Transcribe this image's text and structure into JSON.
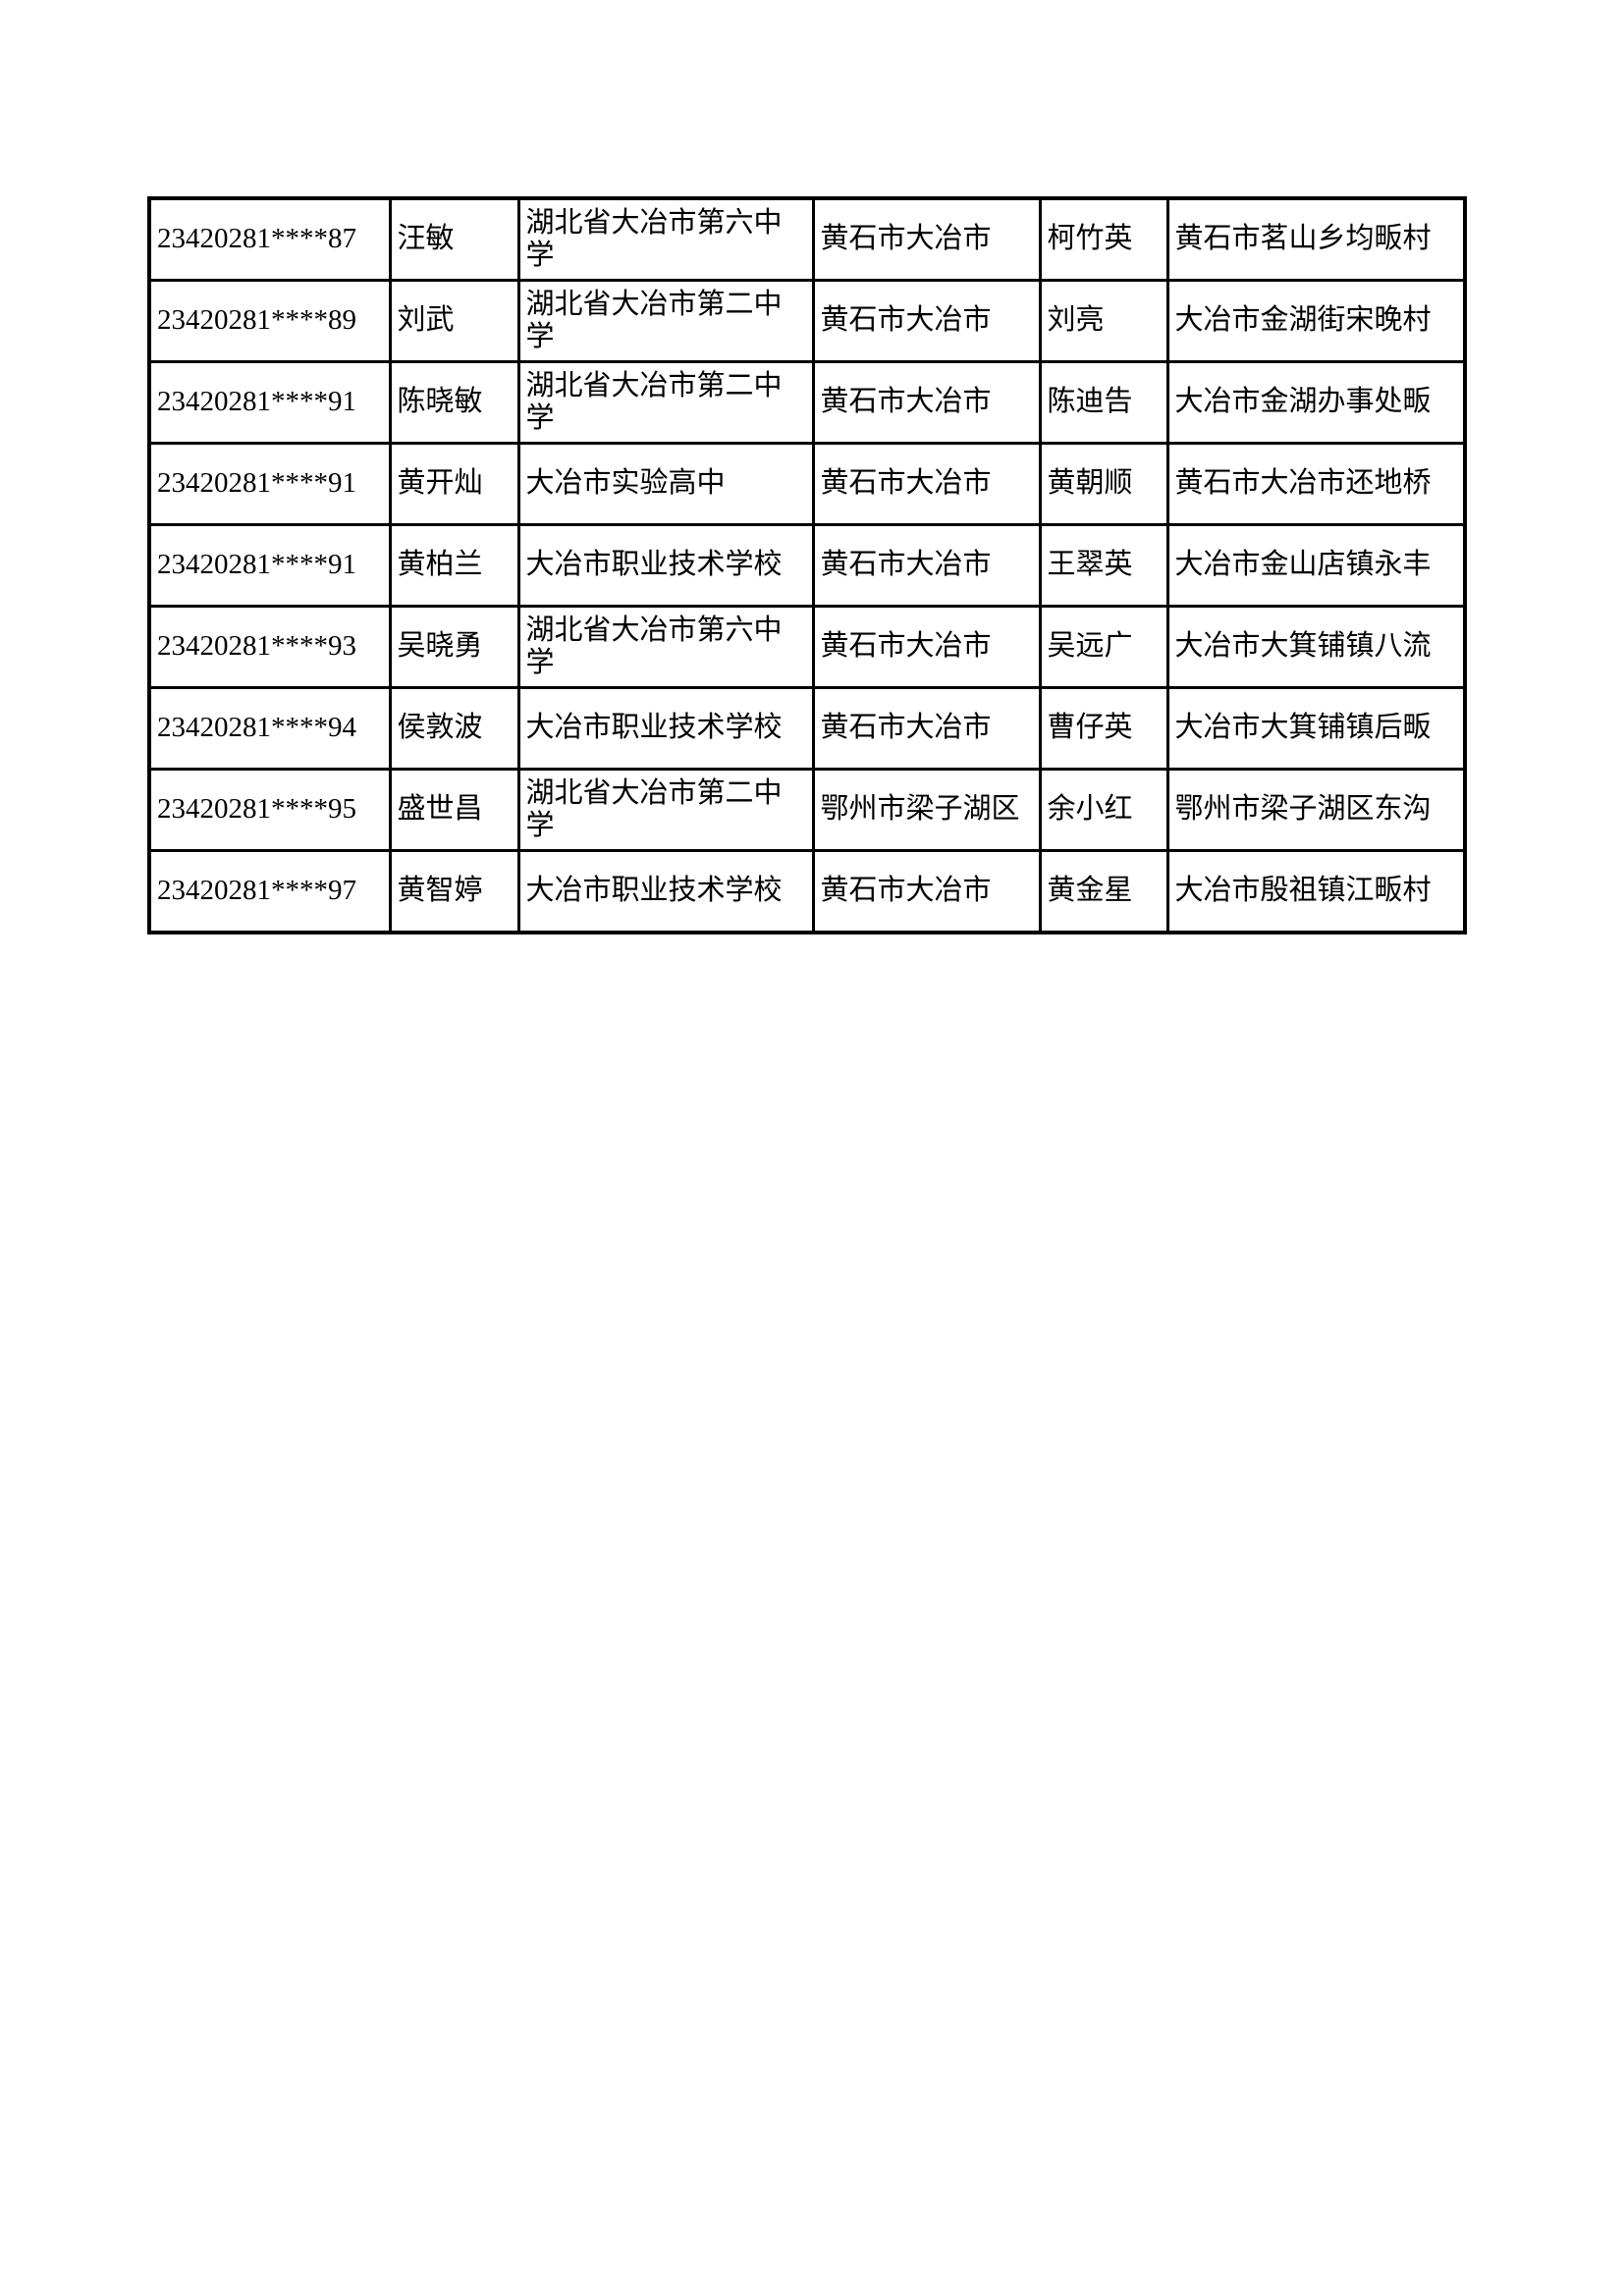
{
  "page": {
    "background_color": "#ffffff",
    "text_color": "#000000",
    "border_color": "#000000"
  },
  "table": {
    "columns": [
      "student_id",
      "student_name",
      "school",
      "city_county",
      "guardian_name",
      "address"
    ],
    "rows": [
      [
        "23420281****87",
        "汪敏",
        "湖北省大冶市第六中学",
        "黄石市大冶市",
        "柯竹英",
        "黄石市茗山乡均畈村"
      ],
      [
        "23420281****89",
        "刘武",
        "湖北省大冶市第二中学",
        "黄石市大冶市",
        "刘亮",
        "大冶市金湖街宋晚村"
      ],
      [
        "23420281****91",
        "陈晓敏",
        "湖北省大冶市第二中学",
        "黄石市大冶市",
        "陈迪告",
        "大冶市金湖办事处畈"
      ],
      [
        "23420281****91",
        "黄开灿",
        "大冶市实验高中",
        "黄石市大冶市",
        "黄朝顺",
        "黄石市大冶市还地桥"
      ],
      [
        "23420281****91",
        "黄柏兰",
        "大冶市职业技术学校",
        "黄石市大冶市",
        "王翠英",
        "大冶市金山店镇永丰"
      ],
      [
        "23420281****93",
        "吴晓勇",
        "湖北省大冶市第六中学",
        "黄石市大冶市",
        "吴远广",
        "大冶市大箕铺镇八流"
      ],
      [
        "23420281****94",
        "侯敦波",
        "大冶市职业技术学校",
        "黄石市大冶市",
        "曹仔英",
        "大冶市大箕铺镇后畈"
      ],
      [
        "23420281****95",
        "盛世昌",
        "湖北省大冶市第二中学",
        "鄂州市梁子湖区",
        "余小红",
        "鄂州市梁子湖区东沟"
      ],
      [
        "23420281****97",
        "黄智婷",
        "大冶市职业技术学校",
        "黄石市大冶市",
        "黄金星",
        "大冶市殷祖镇江畈村"
      ]
    ]
  }
}
